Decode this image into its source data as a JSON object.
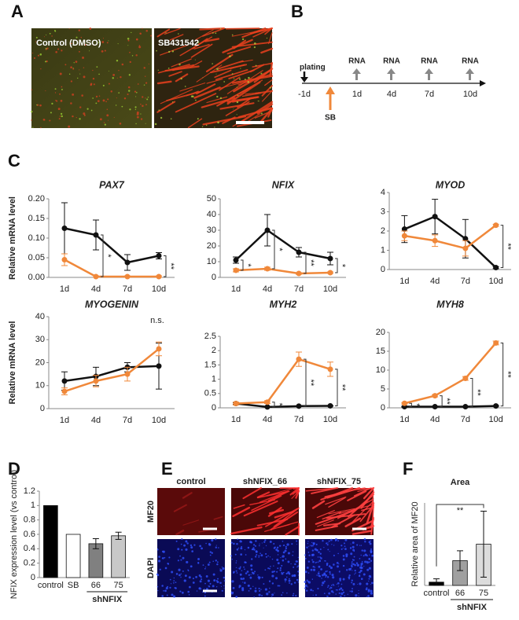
{
  "panels": {
    "labels": [
      "A",
      "B",
      "C",
      "D",
      "E",
      "F"
    ],
    "A": {
      "images": [
        "Control  (DMSO)",
        "SB431542"
      ]
    },
    "B": {
      "plating": "plating",
      "rna": [
        "RNA",
        "RNA",
        "RNA",
        "RNA"
      ],
      "days": [
        "-1d",
        "1d",
        "4d",
        "7d",
        "10d"
      ],
      "treatment": "SB"
    },
    "E": {
      "columns": [
        "control",
        "shNFIX_66",
        "shNFIX_75"
      ],
      "rows": [
        "MF20",
        "DAPI"
      ]
    }
  },
  "chart_data": [
    {
      "type": "line",
      "title": "PAX7",
      "title_color": "#2e75b6",
      "ylabel": "Relative mRNA level",
      "categories": [
        "1d",
        "4d",
        "7d",
        "10d"
      ],
      "series": [
        {
          "color": "#111111",
          "values": [
            0.125,
            0.108,
            0.038,
            0.055
          ],
          "errors": [
            0.065,
            0.038,
            0.02,
            0.008
          ]
        },
        {
          "color": "#f0883a",
          "values": [
            0.045,
            0.002,
            0.002,
            0.002
          ],
          "errors": [
            0.015,
            0.002,
            0.002,
            0.002
          ]
        }
      ],
      "ylim": [
        0,
        0.2
      ],
      "yticks": [
        {
          "value": 0,
          "label": "0.00"
        },
        {
          "value": 0.05,
          "label": "0.05"
        },
        {
          "value": 0.1,
          "label": "0.10"
        },
        {
          "value": 0.15,
          "label": "0.15"
        },
        {
          "value": 0.2,
          "label": "0.20"
        }
      ],
      "annotations": [
        "*",
        "**"
      ]
    },
    {
      "type": "line",
      "title": "NFIX",
      "title_color": "#2e75b6",
      "categories": [
        "1d",
        "4d",
        "7d",
        "10d"
      ],
      "series": [
        {
          "color": "#111111",
          "values": [
            11,
            30,
            16,
            12
          ],
          "errors": [
            2,
            10,
            3,
            4
          ]
        },
        {
          "color": "#f0883a",
          "values": [
            4.5,
            5.5,
            2.5,
            3
          ],
          "errors": [
            1,
            1,
            0.5,
            0.5
          ]
        }
      ],
      "ylim": [
        0,
        50
      ],
      "yticks": [
        0,
        10,
        20,
        30,
        40,
        50
      ],
      "annotations": [
        "*",
        "*",
        "**",
        "*"
      ]
    },
    {
      "type": "line",
      "title": "MYOD",
      "title_color": "#111111",
      "categories": [
        "1d",
        "4d",
        "7d",
        "10d"
      ],
      "series": [
        {
          "color": "#111111",
          "values": [
            2.1,
            2.75,
            1.6,
            0.1
          ],
          "errors": [
            0.7,
            0.9,
            1,
            0.05
          ]
        },
        {
          "color": "#f0883a",
          "values": [
            1.75,
            1.5,
            1.1,
            2.3
          ],
          "errors": [
            0.25,
            0.3,
            0.4,
            0.05
          ]
        }
      ],
      "ylim": [
        0,
        4
      ],
      "yticks": [
        0,
        1,
        2,
        3,
        4
      ],
      "annotations": [
        "**"
      ]
    },
    {
      "type": "line",
      "title": "MYOGENIN",
      "title_color": "#111111",
      "ylabel": "Relative mRNA level",
      "categories": [
        "1d",
        "4d",
        "7d",
        "10d"
      ],
      "series": [
        {
          "color": "#111111",
          "values": [
            12,
            14,
            18,
            18.5
          ],
          "errors": [
            4,
            4,
            2,
            10
          ]
        },
        {
          "color": "#f0883a",
          "values": [
            7.5,
            12,
            15,
            26
          ],
          "errors": [
            1.5,
            2.5,
            3,
            3
          ]
        }
      ],
      "ylim": [
        0,
        40
      ],
      "yticks": [
        0,
        10,
        20,
        30,
        40
      ],
      "annotations": [
        "n.s."
      ]
    },
    {
      "type": "line",
      "title": "MYH2",
      "title_color": "#c00000",
      "categories": [
        "1d",
        "4d",
        "7d",
        "10d"
      ],
      "series": [
        {
          "color": "#111111",
          "values": [
            0.15,
            0.03,
            0.06,
            0.07
          ],
          "errors": [
            0.03,
            0.01,
            0.01,
            0.01
          ]
        },
        {
          "color": "#f0883a",
          "values": [
            0.15,
            0.2,
            1.7,
            1.35
          ],
          "errors": [
            0.05,
            0.05,
            0.25,
            0.25
          ]
        }
      ],
      "ylim": [
        0,
        2.5
      ],
      "yticks": [
        0,
        0.5,
        1,
        1.5,
        2,
        2.5
      ],
      "annotations": [
        "*",
        "**",
        "**"
      ]
    },
    {
      "type": "line",
      "title": "MYH8",
      "title_color": "#c00000",
      "categories": [
        "1d",
        "4d",
        "7d",
        "10d"
      ],
      "series": [
        {
          "color": "#111111",
          "values": [
            0.3,
            0.3,
            0.3,
            0.5
          ],
          "errors": [
            0.1,
            0.1,
            0.1,
            0.1
          ]
        },
        {
          "color": "#f0883a",
          "values": [
            1.2,
            3.2,
            7.8,
            17.2
          ],
          "errors": [
            0.2,
            0.3,
            0.5,
            0.5
          ]
        }
      ],
      "ylim": [
        0,
        20
      ],
      "yticks": [
        0,
        5,
        10,
        15,
        20
      ],
      "annotations": [
        "*",
        "**",
        "**",
        "**"
      ]
    },
    {
      "type": "bar",
      "ylabel": "NFIX expression level (vs control)",
      "categories": [
        "control",
        "SB",
        "66",
        "75"
      ],
      "group_label": "shNFIX",
      "values": [
        1,
        0.6,
        0.47,
        0.58
      ],
      "errors": [
        null,
        null,
        0.07,
        0.05
      ],
      "colors": [
        "#000000",
        "#ffffff",
        "#808080",
        "#c8c8c8"
      ],
      "ylim": [
        0,
        1.2
      ],
      "yticks": [
        0,
        0.2,
        0.4,
        0.6,
        0.8,
        1,
        1.2
      ]
    },
    {
      "type": "bar",
      "title": "Area",
      "ylabel": "Relative area of MF20",
      "categories": [
        "control",
        "66",
        "75"
      ],
      "group_label": "shNFIX",
      "values": [
        1,
        7.5,
        12.5
      ],
      "errors": [
        1,
        3,
        10
      ],
      "colors": [
        "#000000",
        "#a0a0a0",
        "#dcdcdc"
      ],
      "ylim": [
        0,
        25
      ],
      "annotations": [
        "**"
      ]
    }
  ]
}
